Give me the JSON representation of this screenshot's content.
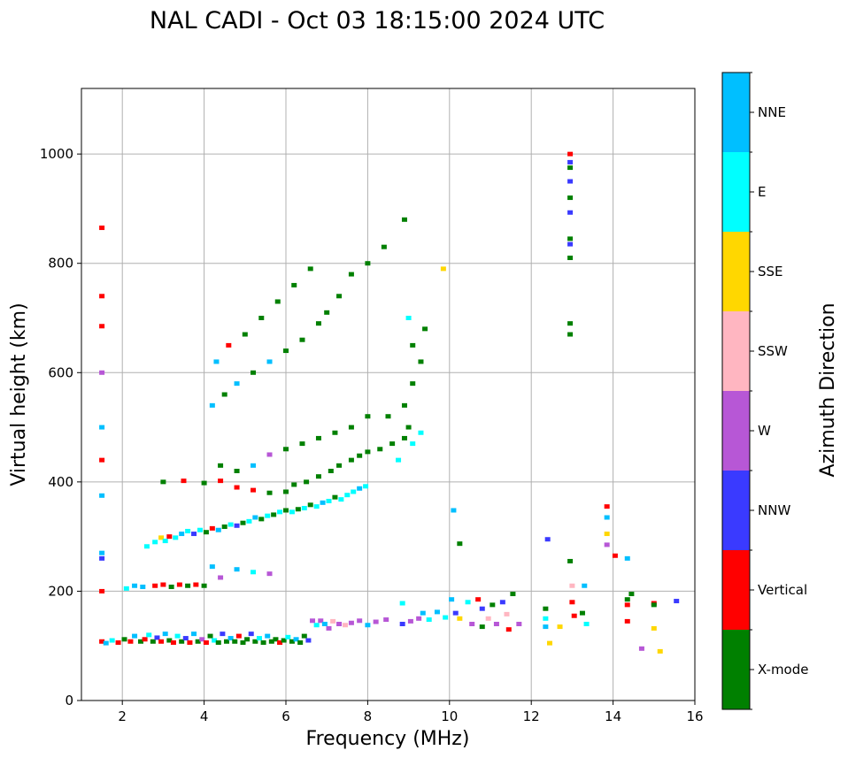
{
  "chart_data": {
    "type": "scatter",
    "title": "NAL CADI - Oct 03 18:15:00 2024 UTC",
    "xlabel": "Frequency (MHz)",
    "ylabel": "Virtual height (km)",
    "xlim": [
      1.0,
      16.0
    ],
    "ylim": [
      0,
      1120
    ],
    "xticks": [
      2,
      4,
      6,
      8,
      10,
      12,
      14,
      16
    ],
    "yticks": [
      0,
      200,
      400,
      600,
      800,
      1000
    ],
    "grid": true,
    "colorbar": {
      "label": "Azimuth Direction",
      "categories": [
        {
          "name": "X-mode",
          "color": "#008000"
        },
        {
          "name": "Vertical",
          "color": "#ff0000"
        },
        {
          "name": "NNW",
          "color": "#3a3aff"
        },
        {
          "name": "W",
          "color": "#b757d6"
        },
        {
          "name": "SSW",
          "color": "#ffb6c1"
        },
        {
          "name": "SSE",
          "color": "#ffd700"
        },
        {
          "name": "E",
          "color": "#00ffff"
        },
        {
          "name": "NNE",
          "color": "#00bfff"
        }
      ]
    },
    "points": [
      [
        1.5,
        108,
        "Vertical"
      ],
      [
        1.6,
        105,
        "NNE"
      ],
      [
        1.75,
        110,
        "E"
      ],
      [
        1.9,
        106,
        "Vertical"
      ],
      [
        2.05,
        112,
        "X-mode"
      ],
      [
        2.2,
        108,
        "Vertical"
      ],
      [
        2.3,
        118,
        "NNE"
      ],
      [
        2.45,
        108,
        "X-mode"
      ],
      [
        2.55,
        112,
        "Vertical"
      ],
      [
        2.65,
        120,
        "E"
      ],
      [
        2.75,
        108,
        "X-mode"
      ],
      [
        2.85,
        115,
        "NNW"
      ],
      [
        2.95,
        108,
        "Vertical"
      ],
      [
        3.05,
        122,
        "NNE"
      ],
      [
        3.15,
        110,
        "X-mode"
      ],
      [
        3.25,
        106,
        "Vertical"
      ],
      [
        3.35,
        118,
        "E"
      ],
      [
        3.45,
        108,
        "X-mode"
      ],
      [
        3.55,
        114,
        "NNW"
      ],
      [
        3.65,
        106,
        "Vertical"
      ],
      [
        3.75,
        122,
        "NNE"
      ],
      [
        3.85,
        108,
        "X-mode"
      ],
      [
        3.95,
        112,
        "W"
      ],
      [
        4.05,
        106,
        "Vertical"
      ],
      [
        4.15,
        118,
        "X-mode"
      ],
      [
        4.25,
        110,
        "E"
      ],
      [
        4.35,
        106,
        "X-mode"
      ],
      [
        4.45,
        122,
        "NNW"
      ],
      [
        4.55,
        108,
        "X-mode"
      ],
      [
        4.65,
        114,
        "NNE"
      ],
      [
        4.75,
        108,
        "X-mode"
      ],
      [
        4.85,
        118,
        "Vertical"
      ],
      [
        4.95,
        106,
        "X-mode"
      ],
      [
        5.05,
        112,
        "X-mode"
      ],
      [
        5.15,
        122,
        "NNW"
      ],
      [
        5.25,
        108,
        "X-mode"
      ],
      [
        5.35,
        114,
        "E"
      ],
      [
        5.45,
        106,
        "X-mode"
      ],
      [
        5.55,
        118,
        "NNE"
      ],
      [
        5.65,
        108,
        "X-mode"
      ],
      [
        5.75,
        112,
        "X-mode"
      ],
      [
        5.85,
        106,
        "Vertical"
      ],
      [
        5.95,
        110,
        "X-mode"
      ],
      [
        6.05,
        116,
        "E"
      ],
      [
        6.15,
        108,
        "X-mode"
      ],
      [
        6.25,
        112,
        "NNE"
      ],
      [
        6.35,
        106,
        "X-mode"
      ],
      [
        6.45,
        118,
        "X-mode"
      ],
      [
        6.55,
        110,
        "NNW"
      ],
      [
        6.65,
        146,
        "W"
      ],
      [
        6.75,
        138,
        "E"
      ],
      [
        6.85,
        146,
        "W"
      ],
      [
        6.95,
        140,
        "NNE"
      ],
      [
        7.05,
        132,
        "W"
      ],
      [
        7.15,
        145,
        "SSW"
      ],
      [
        7.3,
        140,
        "W"
      ],
      [
        7.45,
        138,
        "SSW"
      ],
      [
        7.6,
        142,
        "W"
      ],
      [
        7.8,
        146,
        "W"
      ],
      [
        8.0,
        138,
        "NNE"
      ],
      [
        8.2,
        144,
        "W"
      ],
      [
        8.45,
        148,
        "W"
      ],
      [
        8.85,
        140,
        "NNW"
      ],
      [
        8.85,
        178,
        "E"
      ],
      [
        9.05,
        145,
        "W"
      ],
      [
        9.25,
        150,
        "W"
      ],
      [
        9.35,
        160,
        "NNE"
      ],
      [
        9.5,
        148,
        "E"
      ],
      [
        9.7,
        162,
        "NNE"
      ],
      [
        9.9,
        152,
        "E"
      ],
      [
        10.05,
        185,
        "NNE"
      ],
      [
        10.15,
        160,
        "NNW"
      ],
      [
        10.25,
        150,
        "SSE"
      ],
      [
        10.45,
        180,
        "E"
      ],
      [
        10.55,
        140,
        "W"
      ],
      [
        10.7,
        185,
        "Vertical"
      ],
      [
        10.8,
        168,
        "NNW"
      ],
      [
        10.8,
        135,
        "X-mode"
      ],
      [
        10.95,
        150,
        "SSW"
      ],
      [
        11.05,
        175,
        "X-mode"
      ],
      [
        11.15,
        140,
        "W"
      ],
      [
        11.3,
        180,
        "NNW"
      ],
      [
        11.4,
        158,
        "SSW"
      ],
      [
        11.45,
        130,
        "Vertical"
      ],
      [
        11.55,
        195,
        "X-mode"
      ],
      [
        11.7,
        140,
        "W"
      ],
      [
        12.35,
        168,
        "X-mode"
      ],
      [
        12.35,
        150,
        "E"
      ],
      [
        12.35,
        135,
        "NNE"
      ],
      [
        12.45,
        105,
        "SSE"
      ],
      [
        12.7,
        135,
        "SSE"
      ],
      [
        12.95,
        255,
        "X-mode"
      ],
      [
        13.0,
        210,
        "SSW"
      ],
      [
        13.0,
        180,
        "Vertical"
      ],
      [
        13.05,
        155,
        "Vertical"
      ],
      [
        13.25,
        160,
        "X-mode"
      ],
      [
        13.3,
        210,
        "NNE"
      ],
      [
        13.35,
        140,
        "E"
      ],
      [
        13.85,
        355,
        "Vertical"
      ],
      [
        13.85,
        335,
        "NNE"
      ],
      [
        13.85,
        305,
        "SSE"
      ],
      [
        13.85,
        285,
        "W"
      ],
      [
        14.05,
        265,
        "Vertical"
      ],
      [
        14.35,
        260,
        "NNE"
      ],
      [
        14.35,
        185,
        "X-mode"
      ],
      [
        14.35,
        175,
        "Vertical"
      ],
      [
        14.35,
        145,
        "Vertical"
      ],
      [
        14.45,
        195,
        "X-mode"
      ],
      [
        14.7,
        95,
        "W"
      ],
      [
        15.0,
        178,
        "Vertical"
      ],
      [
        15.0,
        175,
        "X-mode"
      ],
      [
        15.0,
        132,
        "SSE"
      ],
      [
        15.15,
        90,
        "SSE"
      ],
      [
        15.55,
        182,
        "NNW"
      ],
      [
        2.1,
        205,
        "E"
      ],
      [
        2.3,
        210,
        "NNE"
      ],
      [
        2.5,
        208,
        "NNE"
      ],
      [
        2.8,
        210,
        "Vertical"
      ],
      [
        3.0,
        212,
        "Vertical"
      ],
      [
        3.2,
        208,
        "X-mode"
      ],
      [
        3.4,
        212,
        "Vertical"
      ],
      [
        3.6,
        210,
        "X-mode"
      ],
      [
        3.8,
        212,
        "Vertical"
      ],
      [
        4.0,
        210,
        "X-mode"
      ],
      [
        1.5,
        200,
        "Vertical"
      ],
      [
        4.2,
        245,
        "NNE"
      ],
      [
        4.4,
        225,
        "W"
      ],
      [
        4.8,
        240,
        "NNE"
      ],
      [
        5.2,
        235,
        "E"
      ],
      [
        5.6,
        232,
        "W"
      ],
      [
        2.6,
        282,
        "E"
      ],
      [
        2.8,
        290,
        "E"
      ],
      [
        2.95,
        298,
        "SSE"
      ],
      [
        3.05,
        292,
        "E"
      ],
      [
        3.15,
        300,
        "Vertical"
      ],
      [
        3.3,
        298,
        "E"
      ],
      [
        3.45,
        305,
        "NNE"
      ],
      [
        3.6,
        310,
        "E"
      ],
      [
        3.75,
        305,
        "NNW"
      ],
      [
        3.9,
        312,
        "E"
      ],
      [
        4.05,
        308,
        "X-mode"
      ],
      [
        4.2,
        315,
        "Vertical"
      ],
      [
        4.35,
        312,
        "NNE"
      ],
      [
        4.5,
        318,
        "X-mode"
      ],
      [
        4.65,
        322,
        "E"
      ],
      [
        4.8,
        320,
        "NNW"
      ],
      [
        4.95,
        325,
        "X-mode"
      ],
      [
        5.1,
        328,
        "E"
      ],
      [
        5.25,
        335,
        "NNE"
      ],
      [
        5.4,
        332,
        "X-mode"
      ],
      [
        5.55,
        338,
        "E"
      ],
      [
        5.7,
        340,
        "X-mode"
      ],
      [
        5.85,
        345,
        "E"
      ],
      [
        6.0,
        348,
        "X-mode"
      ],
      [
        6.15,
        345,
        "E"
      ],
      [
        6.3,
        350,
        "X-mode"
      ],
      [
        6.45,
        352,
        "E"
      ],
      [
        6.6,
        358,
        "X-mode"
      ],
      [
        6.75,
        355,
        "E"
      ],
      [
        6.9,
        362,
        "NNE"
      ],
      [
        7.05,
        365,
        "E"
      ],
      [
        7.2,
        372,
        "X-mode"
      ],
      [
        7.35,
        368,
        "E"
      ],
      [
        7.5,
        376,
        "E"
      ],
      [
        7.65,
        382,
        "E"
      ],
      [
        7.8,
        388,
        "NNE"
      ],
      [
        7.95,
        392,
        "E"
      ],
      [
        3.0,
        400,
        "X-mode"
      ],
      [
        3.5,
        402,
        "Vertical"
      ],
      [
        4.0,
        398,
        "X-mode"
      ],
      [
        4.4,
        402,
        "Vertical"
      ],
      [
        4.8,
        390,
        "Vertical"
      ],
      [
        5.2,
        385,
        "Vertical"
      ],
      [
        5.6,
        380,
        "X-mode"
      ],
      [
        6.0,
        382,
        "X-mode"
      ],
      [
        6.2,
        395,
        "X-mode"
      ],
      [
        6.5,
        400,
        "X-mode"
      ],
      [
        6.8,
        410,
        "X-mode"
      ],
      [
        7.1,
        420,
        "X-mode"
      ],
      [
        7.3,
        430,
        "X-mode"
      ],
      [
        7.6,
        440,
        "X-mode"
      ],
      [
        7.8,
        448,
        "X-mode"
      ],
      [
        8.0,
        455,
        "X-mode"
      ],
      [
        8.3,
        460,
        "X-mode"
      ],
      [
        8.6,
        470,
        "X-mode"
      ],
      [
        8.9,
        480,
        "X-mode"
      ],
      [
        9.1,
        470,
        "E"
      ],
      [
        9.3,
        490,
        "E"
      ],
      [
        8.75,
        440,
        "E"
      ],
      [
        9.0,
        500,
        "X-mode"
      ],
      [
        4.4,
        430,
        "X-mode"
      ],
      [
        4.8,
        420,
        "X-mode"
      ],
      [
        5.2,
        430,
        "NNE"
      ],
      [
        5.6,
        450,
        "W"
      ],
      [
        6.0,
        460,
        "X-mode"
      ],
      [
        6.4,
        470,
        "X-mode"
      ],
      [
        6.8,
        480,
        "X-mode"
      ],
      [
        7.2,
        490,
        "X-mode"
      ],
      [
        7.6,
        500,
        "X-mode"
      ],
      [
        8.0,
        520,
        "X-mode"
      ],
      [
        8.5,
        520,
        "X-mode"
      ],
      [
        8.9,
        540,
        "X-mode"
      ],
      [
        9.1,
        580,
        "X-mode"
      ],
      [
        9.3,
        620,
        "X-mode"
      ],
      [
        9.4,
        680,
        "X-mode"
      ],
      [
        4.2,
        540,
        "NNE"
      ],
      [
        4.5,
        560,
        "X-mode"
      ],
      [
        4.8,
        580,
        "NNE"
      ],
      [
        5.2,
        600,
        "X-mode"
      ],
      [
        5.6,
        620,
        "NNE"
      ],
      [
        6.0,
        640,
        "X-mode"
      ],
      [
        6.4,
        660,
        "X-mode"
      ],
      [
        6.8,
        690,
        "X-mode"
      ],
      [
        7.0,
        710,
        "X-mode"
      ],
      [
        7.3,
        740,
        "X-mode"
      ],
      [
        7.6,
        780,
        "X-mode"
      ],
      [
        8.0,
        800,
        "X-mode"
      ],
      [
        8.4,
        830,
        "X-mode"
      ],
      [
        8.9,
        880,
        "X-mode"
      ],
      [
        4.3,
        620,
        "NNE"
      ],
      [
        4.6,
        650,
        "Vertical"
      ],
      [
        5.0,
        670,
        "X-mode"
      ],
      [
        5.4,
        700,
        "X-mode"
      ],
      [
        5.8,
        730,
        "X-mode"
      ],
      [
        6.2,
        760,
        "X-mode"
      ],
      [
        6.6,
        790,
        "X-mode"
      ],
      [
        9.0,
        700,
        "E"
      ],
      [
        9.1,
        650,
        "X-mode"
      ],
      [
        1.5,
        865,
        "Vertical"
      ],
      [
        1.5,
        740,
        "Vertical"
      ],
      [
        1.5,
        685,
        "Vertical"
      ],
      [
        1.5,
        600,
        "W"
      ],
      [
        1.5,
        500,
        "NNE"
      ],
      [
        1.5,
        440,
        "Vertical"
      ],
      [
        1.5,
        375,
        "NNE"
      ],
      [
        1.5,
        260,
        "NNW"
      ],
      [
        1.5,
        270,
        "NNE"
      ],
      [
        12.95,
        1000,
        "Vertical"
      ],
      [
        12.95,
        985,
        "NNW"
      ],
      [
        12.95,
        975,
        "X-mode"
      ],
      [
        12.95,
        950,
        "NNW"
      ],
      [
        12.95,
        920,
        "X-mode"
      ],
      [
        12.95,
        893,
        "NNW"
      ],
      [
        12.95,
        845,
        "X-mode"
      ],
      [
        12.95,
        835,
        "NNW"
      ],
      [
        12.95,
        810,
        "X-mode"
      ],
      [
        12.95,
        690,
        "X-mode"
      ],
      [
        12.95,
        670,
        "X-mode"
      ],
      [
        12.4,
        295,
        "NNW"
      ],
      [
        10.1,
        348,
        "NNE"
      ],
      [
        10.25,
        287,
        "X-mode"
      ],
      [
        9.85,
        790,
        "SSE"
      ]
    ]
  }
}
